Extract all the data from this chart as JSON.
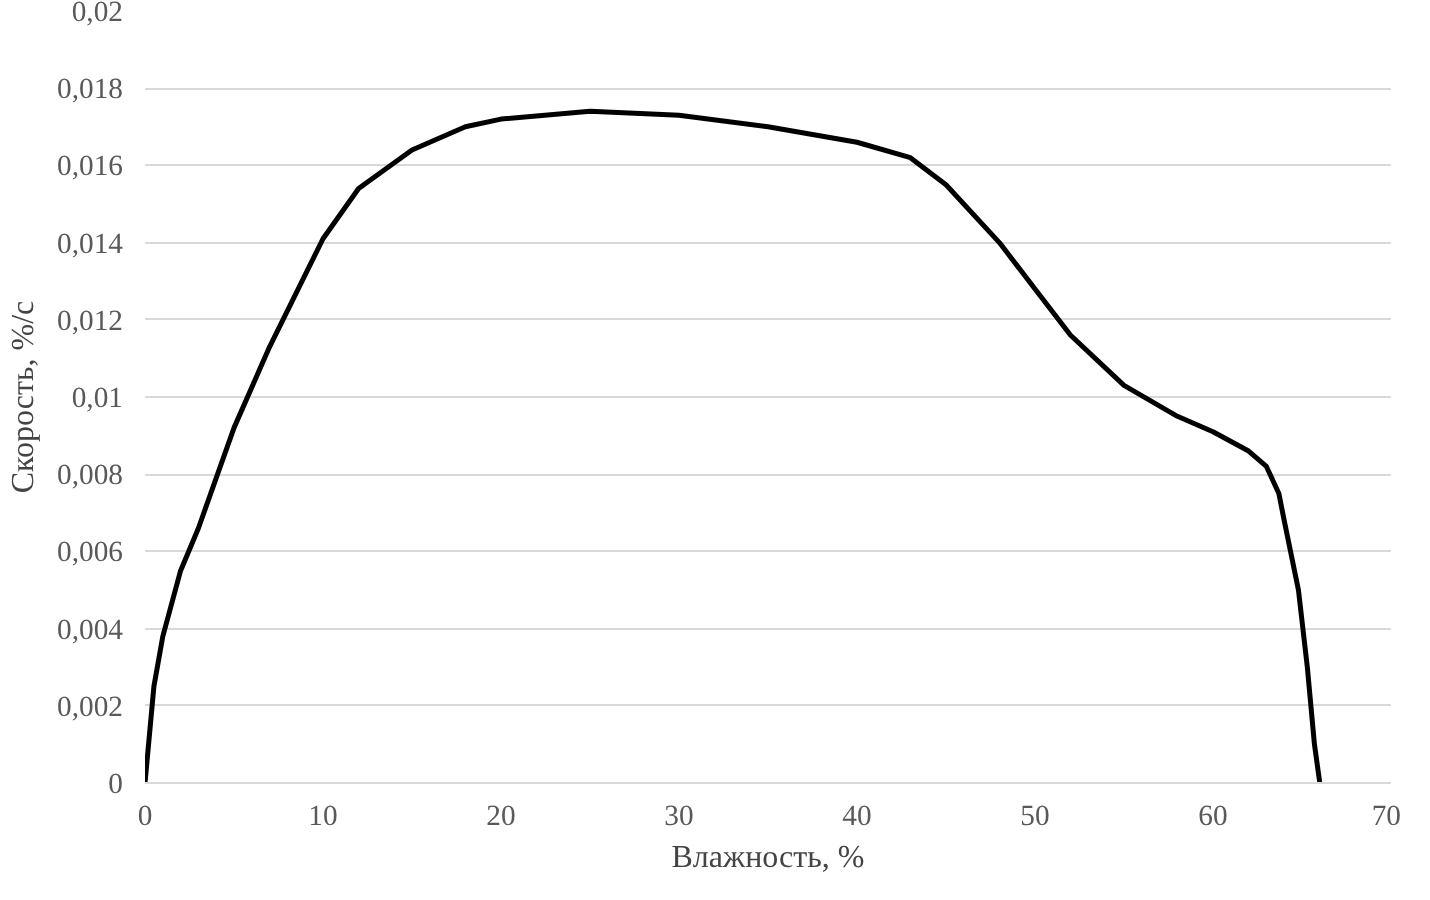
{
  "chart_data": {
    "type": "line",
    "xlabel": "Влажность, %",
    "ylabel": "Скорость, %/с",
    "x": [
      0,
      0.5,
      1,
      2,
      3,
      5,
      7,
      10,
      12,
      15,
      18,
      20,
      25,
      30,
      35,
      40,
      43,
      45,
      48,
      50,
      52,
      55,
      58,
      60,
      62,
      63,
      63.7,
      64,
      64.8,
      65.3,
      65.7,
      66
    ],
    "series": [
      {
        "color": "#000000",
        "values": [
          0,
          0.0025,
          0.0038,
          0.0055,
          0.0066,
          0.0092,
          0.0113,
          0.0141,
          0.0154,
          0.0164,
          0.017,
          0.0172,
          0.0174,
          0.0173,
          0.017,
          0.0166,
          0.0162,
          0.0155,
          0.014,
          0.0128,
          0.0116,
          0.0103,
          0.0095,
          0.0091,
          0.0086,
          0.0082,
          0.0075,
          0.0068,
          0.005,
          0.003,
          0.001,
          0
        ]
      }
    ],
    "xlim": [
      0,
      70
    ],
    "xticks": [
      0,
      10,
      20,
      30,
      40,
      50,
      60,
      70
    ],
    "ylim": [
      0,
      0.02
    ],
    "yticks": [
      {
        "value": 0,
        "label": "0"
      },
      {
        "value": 0.002,
        "label": "0,002"
      },
      {
        "value": 0.004,
        "label": "0,004"
      },
      {
        "value": 0.006,
        "label": "0,006"
      },
      {
        "value": 0.008,
        "label": "0,008"
      },
      {
        "value": 0.01,
        "label": "0,01"
      },
      {
        "value": 0.012,
        "label": "0,012"
      },
      {
        "value": 0.014,
        "label": "0,014"
      },
      {
        "value": 0.016,
        "label": "0,016"
      },
      {
        "value": 0.018,
        "label": "0,018"
      },
      {
        "value": 0.02,
        "label": "0,02"
      }
    ],
    "grid": "y",
    "line_style": "solid"
  }
}
